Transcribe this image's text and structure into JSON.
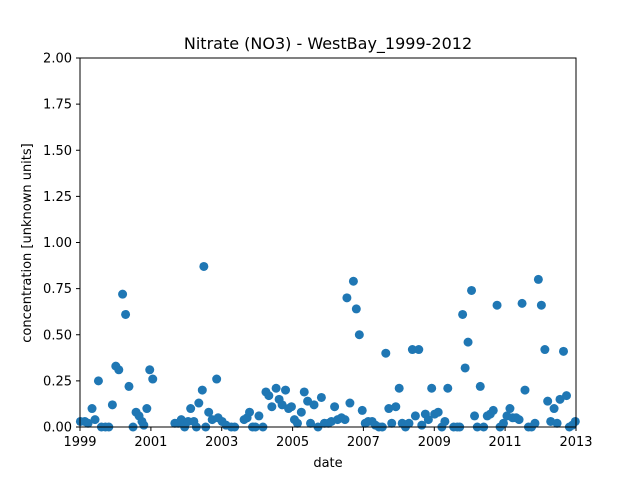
{
  "chart_data": {
    "type": "scatter",
    "title": "Nitrate (NO3) - WestBay_1999-2012",
    "xlabel": "date",
    "ylabel": "concentration [unknown units]",
    "xlim": [
      "1999-01-01",
      "2013-01-01"
    ],
    "ylim": [
      0,
      2.0
    ],
    "x_ticks": [
      "1999",
      "2001",
      "2003",
      "2005",
      "2007",
      "2009",
      "2011",
      "2013"
    ],
    "y_ticks": [
      "0.00",
      "0.25",
      "0.50",
      "0.75",
      "1.00",
      "1.25",
      "1.50",
      "1.75",
      "2.00"
    ],
    "grid": false,
    "marker_color": "#1f77b4",
    "series": [
      {
        "points": [
          [
            "1999-01-05",
            0.03
          ],
          [
            "1999-02-20",
            0.03
          ],
          [
            "1999-03-25",
            0.02
          ],
          [
            "1999-05-05",
            0.1
          ],
          [
            "1999-06-05",
            0.04
          ],
          [
            "1999-07-10",
            0.25
          ],
          [
            "1999-08-10",
            0.0
          ],
          [
            "1999-09-20",
            0.0
          ],
          [
            "1999-10-25",
            0.0
          ],
          [
            "1999-12-01",
            0.12
          ],
          [
            "2000-01-05",
            0.33
          ],
          [
            "2000-02-05",
            0.31
          ],
          [
            "2000-03-15",
            0.72
          ],
          [
            "2000-04-15",
            0.61
          ],
          [
            "2000-05-20",
            0.22
          ],
          [
            "2000-07-01",
            0.0
          ],
          [
            "2000-08-01",
            0.08
          ],
          [
            "2000-09-01",
            0.06
          ],
          [
            "2000-10-01",
            0.03
          ],
          [
            "2000-10-20",
            0.01
          ],
          [
            "2000-11-20",
            0.1
          ],
          [
            "2000-12-20",
            0.31
          ],
          [
            "2001-01-20",
            0.26
          ],
          [
            "2001-09-05",
            0.02
          ],
          [
            "2001-10-10",
            0.02
          ],
          [
            "2001-11-10",
            0.04
          ],
          [
            "2001-12-15",
            0.0
          ],
          [
            "2002-01-20",
            0.03
          ],
          [
            "2002-02-15",
            0.1
          ],
          [
            "2002-03-20",
            0.03
          ],
          [
            "2002-04-15",
            0.0
          ],
          [
            "2002-05-10",
            0.13
          ],
          [
            "2002-06-15",
            0.2
          ],
          [
            "2002-07-01",
            0.87
          ],
          [
            "2002-07-20",
            0.0
          ],
          [
            "2002-08-20",
            0.08
          ],
          [
            "2002-09-25",
            0.04
          ],
          [
            "2002-11-10",
            0.26
          ],
          [
            "2002-11-25",
            0.05
          ],
          [
            "2003-01-05",
            0.03
          ],
          [
            "2003-02-15",
            0.01
          ],
          [
            "2003-04-10",
            0.0
          ],
          [
            "2003-05-15",
            0.0
          ],
          [
            "2003-08-20",
            0.04
          ],
          [
            "2003-09-20",
            0.05
          ],
          [
            "2003-10-15",
            0.08
          ],
          [
            "2003-11-15",
            0.0
          ],
          [
            "2003-12-15",
            0.0
          ],
          [
            "2004-01-20",
            0.06
          ],
          [
            "2004-03-01",
            0.0
          ],
          [
            "2004-04-01",
            0.19
          ],
          [
            "2004-05-01",
            0.17
          ],
          [
            "2004-06-01",
            0.11
          ],
          [
            "2004-07-15",
            0.21
          ],
          [
            "2004-08-15",
            0.15
          ],
          [
            "2004-09-15",
            0.12
          ],
          [
            "2004-10-20",
            0.2
          ],
          [
            "2004-11-20",
            0.1
          ],
          [
            "2004-12-20",
            0.11
          ],
          [
            "2005-01-20",
            0.04
          ],
          [
            "2005-02-20",
            0.02
          ],
          [
            "2005-04-01",
            0.08
          ],
          [
            "2005-05-01",
            0.19
          ],
          [
            "2005-06-05",
            0.14
          ],
          [
            "2005-07-05",
            0.02
          ],
          [
            "2005-08-10",
            0.12
          ],
          [
            "2005-09-20",
            0.0
          ],
          [
            "2005-10-25",
            0.16
          ],
          [
            "2005-11-25",
            0.02
          ],
          [
            "2006-01-05",
            0.02
          ],
          [
            "2006-02-05",
            0.03
          ],
          [
            "2006-03-10",
            0.11
          ],
          [
            "2006-04-10",
            0.04
          ],
          [
            "2006-05-20",
            0.05
          ],
          [
            "2006-06-25",
            0.04
          ],
          [
            "2006-07-15",
            0.7
          ],
          [
            "2006-08-15",
            0.13
          ],
          [
            "2006-09-20",
            0.79
          ],
          [
            "2006-10-20",
            0.64
          ],
          [
            "2006-11-20",
            0.5
          ],
          [
            "2006-12-20",
            0.09
          ],
          [
            "2007-01-20",
            0.02
          ],
          [
            "2007-02-20",
            0.03
          ],
          [
            "2007-04-01",
            0.03
          ],
          [
            "2007-05-05",
            0.01
          ],
          [
            "2007-06-10",
            0.0
          ],
          [
            "2007-07-15",
            0.0
          ],
          [
            "2007-08-20",
            0.4
          ],
          [
            "2007-09-20",
            0.1
          ],
          [
            "2007-10-20",
            0.02
          ],
          [
            "2007-12-01",
            0.11
          ],
          [
            "2008-01-05",
            0.21
          ],
          [
            "2008-02-05",
            0.02
          ],
          [
            "2008-03-10",
            0.0
          ],
          [
            "2008-04-15",
            0.02
          ],
          [
            "2008-05-20",
            0.42
          ],
          [
            "2008-06-20",
            0.06
          ],
          [
            "2008-07-25",
            0.42
          ],
          [
            "2008-08-25",
            0.01
          ],
          [
            "2008-10-01",
            0.07
          ],
          [
            "2008-11-01",
            0.04
          ],
          [
            "2008-12-05",
            0.21
          ],
          [
            "2009-01-05",
            0.07
          ],
          [
            "2009-02-10",
            0.08
          ],
          [
            "2009-03-20",
            0.0
          ],
          [
            "2009-04-20",
            0.03
          ],
          [
            "2009-05-20",
            0.21
          ],
          [
            "2009-07-20",
            0.0
          ],
          [
            "2009-08-25",
            0.0
          ],
          [
            "2009-09-20",
            0.0
          ],
          [
            "2009-10-20",
            0.61
          ],
          [
            "2009-11-15",
            0.32
          ],
          [
            "2009-12-15",
            0.46
          ],
          [
            "2010-01-20",
            0.74
          ],
          [
            "2010-02-20",
            0.06
          ],
          [
            "2010-03-20",
            0.0
          ],
          [
            "2010-04-20",
            0.22
          ],
          [
            "2010-05-25",
            0.0
          ],
          [
            "2010-07-01",
            0.06
          ],
          [
            "2010-08-01",
            0.07
          ],
          [
            "2010-09-01",
            0.09
          ],
          [
            "2010-10-10",
            0.66
          ],
          [
            "2010-11-10",
            0.0
          ],
          [
            "2010-12-15",
            0.02
          ],
          [
            "2011-01-20",
            0.06
          ],
          [
            "2011-02-20",
            0.1
          ],
          [
            "2011-03-20",
            0.05
          ],
          [
            "2011-04-25",
            0.05
          ],
          [
            "2011-05-25",
            0.04
          ],
          [
            "2011-06-25",
            0.67
          ],
          [
            "2011-07-25",
            0.2
          ],
          [
            "2011-08-30",
            0.0
          ],
          [
            "2011-10-01",
            0.0
          ],
          [
            "2011-11-05",
            0.02
          ],
          [
            "2011-12-10",
            0.8
          ],
          [
            "2012-01-10",
            0.66
          ],
          [
            "2012-02-15",
            0.42
          ],
          [
            "2012-03-15",
            0.14
          ],
          [
            "2012-04-15",
            0.03
          ],
          [
            "2012-05-20",
            0.1
          ],
          [
            "2012-06-20",
            0.02
          ],
          [
            "2012-07-20",
            0.15
          ],
          [
            "2012-08-25",
            0.41
          ],
          [
            "2012-09-25",
            0.17
          ],
          [
            "2012-10-25",
            0.0
          ],
          [
            "2012-11-25",
            0.01
          ],
          [
            "2012-12-25",
            0.03
          ]
        ]
      }
    ]
  }
}
